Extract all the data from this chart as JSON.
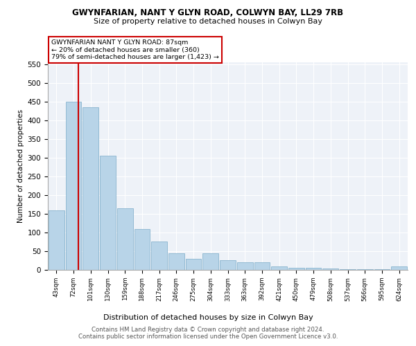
{
  "title1": "GWYNFARIAN, NANT Y GLYN ROAD, COLWYN BAY, LL29 7RB",
  "title2": "Size of property relative to detached houses in Colwyn Bay",
  "xlabel": "Distribution of detached houses by size in Colwyn Bay",
  "ylabel": "Number of detached properties",
  "footer1": "Contains HM Land Registry data © Crown copyright and database right 2024.",
  "footer2": "Contains public sector information licensed under the Open Government Licence v3.0.",
  "annotation_line1": "GWYNFARIAN NANT Y GLYN ROAD: 87sqm",
  "annotation_line2": "← 20% of detached houses are smaller (360)",
  "annotation_line3": "79% of semi-detached houses are larger (1,423) →",
  "bar_color": "#b8d4e8",
  "bar_edge_color": "#7aaac8",
  "red_line_color": "#cc0000",
  "background_color": "#eef2f8",
  "categories": [
    "43sqm",
    "72sqm",
    "101sqm",
    "130sqm",
    "159sqm",
    "188sqm",
    "217sqm",
    "246sqm",
    "275sqm",
    "304sqm",
    "333sqm",
    "363sqm",
    "392sqm",
    "421sqm",
    "450sqm",
    "479sqm",
    "508sqm",
    "537sqm",
    "566sqm",
    "595sqm",
    "624sqm"
  ],
  "values": [
    160,
    450,
    435,
    305,
    165,
    110,
    75,
    45,
    30,
    45,
    25,
    20,
    20,
    10,
    5,
    5,
    3,
    2,
    2,
    2,
    10
  ],
  "red_line_x": 1.3,
  "ylim": [
    0,
    555
  ],
  "yticks": [
    0,
    50,
    100,
    150,
    200,
    250,
    300,
    350,
    400,
    450,
    500,
    550
  ]
}
